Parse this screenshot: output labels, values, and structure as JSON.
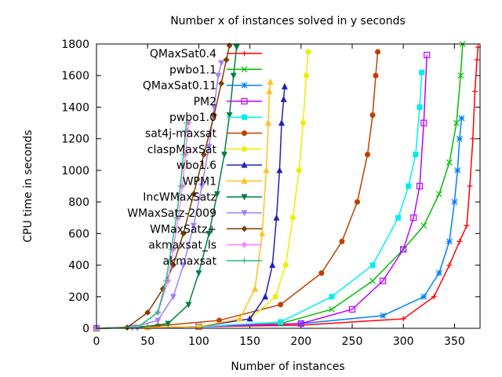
{
  "chart_data": {
    "type": "line",
    "title": "Number x of instances solved in y seconds",
    "xlabel": "Number of instances",
    "ylabel": "CPU time in seconds",
    "xlim": [
      0,
      375
    ],
    "ylim": [
      0,
      1800
    ],
    "xticks": [
      0,
      50,
      100,
      150,
      200,
      250,
      300,
      350
    ],
    "yticks": [
      0,
      200,
      400,
      600,
      800,
      1000,
      1200,
      1400,
      1600,
      1800
    ],
    "grid": false,
    "legend_position": "top-left",
    "series": [
      {
        "name": "QMaxSat0.4",
        "color": "#ff0000",
        "marker": "plus",
        "x": [
          0,
          100,
          200,
          300,
          330,
          345,
          355,
          362,
          365,
          368,
          370,
          372,
          373
        ],
        "y": [
          0,
          10,
          20,
          60,
          200,
          400,
          550,
          650,
          900,
          1200,
          1500,
          1700,
          1780
        ]
      },
      {
        "name": "pwbo1.1",
        "color": "#00c000",
        "marker": "x",
        "x": [
          0,
          100,
          180,
          230,
          270,
          300,
          320,
          335,
          345,
          352,
          356,
          358
        ],
        "y": [
          0,
          10,
          30,
          120,
          300,
          500,
          650,
          850,
          1050,
          1300,
          1600,
          1800
        ]
      },
      {
        "name": "QMaxSat0.11",
        "color": "#0080ff",
        "marker": "star",
        "x": [
          0,
          100,
          200,
          280,
          320,
          335,
          345,
          350,
          353,
          355,
          357
        ],
        "y": [
          0,
          10,
          30,
          80,
          200,
          350,
          550,
          800,
          1000,
          1200,
          1330
        ]
      },
      {
        "name": "PM2",
        "color": "#c000ff",
        "marker": "box",
        "x": [
          0,
          100,
          200,
          250,
          280,
          300,
          310,
          316,
          320,
          323
        ],
        "y": [
          0,
          10,
          30,
          120,
          300,
          500,
          700,
          900,
          1300,
          1730
        ]
      },
      {
        "name": "pwbo1.0",
        "color": "#00eeee",
        "marker": "fbox",
        "x": [
          0,
          100,
          180,
          230,
          270,
          295,
          305,
          312,
          316,
          318
        ],
        "y": [
          0,
          10,
          40,
          200,
          400,
          700,
          900,
          1100,
          1400,
          1620
        ]
      },
      {
        "name": "sat4j-maxsat",
        "color": "#c04000",
        "marker": "fcircle",
        "x": [
          0,
          60,
          120,
          180,
          220,
          240,
          255,
          265,
          270,
          273,
          275
        ],
        "y": [
          0,
          15,
          50,
          150,
          350,
          550,
          800,
          1100,
          1350,
          1600,
          1750
        ]
      },
      {
        "name": "claspMaxSat",
        "color": "#eeee00",
        "marker": "fcircle",
        "x": [
          0,
          50,
          100,
          150,
          175,
          185,
          192,
          198,
          202,
          205,
          207
        ],
        "y": [
          0,
          5,
          10,
          60,
          200,
          400,
          700,
          1000,
          1300,
          1600,
          1750
        ]
      },
      {
        "name": "wbo1.6",
        "color": "#2020c0",
        "marker": "ftriangle",
        "x": [
          0,
          50,
          100,
          150,
          165,
          172,
          176,
          179,
          181,
          183,
          184
        ],
        "y": [
          0,
          5,
          10,
          60,
          200,
          400,
          700,
          1000,
          1300,
          1450,
          1530
        ]
      },
      {
        "name": "WPM1",
        "color": "#ffc020",
        "marker": "ftriangle",
        "x": [
          0,
          50,
          100,
          140,
          155,
          162,
          166,
          168,
          169,
          170
        ],
        "y": [
          0,
          5,
          10,
          60,
          250,
          600,
          1000,
          1300,
          1500,
          1560
        ]
      },
      {
        "name": "IncWMaxSatz",
        "color": "#008040",
        "marker": "fdtriangle",
        "x": [
          0,
          40,
          70,
          90,
          100,
          110,
          118,
          125,
          130,
          134,
          137
        ],
        "y": [
          0,
          5,
          30,
          150,
          350,
          600,
          850,
          1100,
          1350,
          1600,
          1780
        ]
      },
      {
        "name": "WMaxSatz-2009",
        "color": "#a080ff",
        "marker": "fdtriangle",
        "x": [
          0,
          35,
          60,
          75,
          85,
          95,
          103,
          110,
          115,
          119,
          122
        ],
        "y": [
          0,
          5,
          50,
          200,
          400,
          650,
          900,
          1150,
          1400,
          1600,
          1680
        ]
      },
      {
        "name": "WMaxSatz+",
        "color": "#804000",
        "marker": "fdiamond",
        "x": [
          0,
          30,
          50,
          65,
          75,
          85,
          95,
          105,
          115,
          122,
          127,
          130
        ],
        "y": [
          0,
          5,
          100,
          250,
          400,
          600,
          850,
          1100,
          1350,
          1550,
          1700,
          1790
        ]
      },
      {
        "name": "akmaxsat_ls",
        "color": "#ff80ff",
        "marker": "fdiamond",
        "x": [
          0,
          40,
          60,
          70,
          75,
          80,
          84,
          87,
          89,
          90
        ],
        "y": [
          0,
          5,
          100,
          300,
          500,
          700,
          900,
          1100,
          1250,
          1300
        ]
      },
      {
        "name": "akmaxsat",
        "color": "#20c080",
        "marker": "plus",
        "x": [
          0,
          40,
          60,
          68,
          73,
          78,
          82,
          85,
          87,
          88
        ],
        "y": [
          0,
          5,
          100,
          300,
          500,
          700,
          900,
          1100,
          1250,
          1300
        ]
      }
    ]
  }
}
